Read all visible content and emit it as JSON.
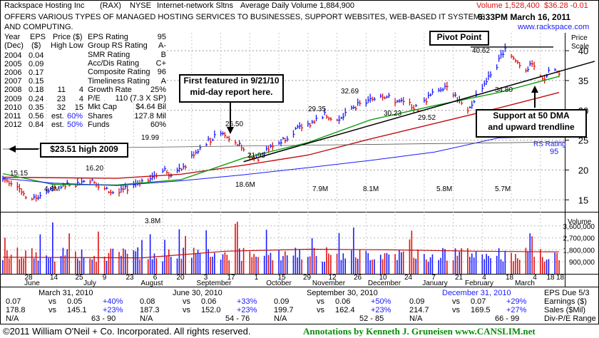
{
  "header": {
    "company": "Rackspace Hosting Inc",
    "symbol": "(RAX)",
    "exchange": "NYSE",
    "industry": "Internet-network Sltns",
    "avg_volume": "Average Daily Volume 1,884,900",
    "volume": "Volume 1,528,400",
    "price": "$36.28 -0.01",
    "timestamp": "6:33PM March 16, 2011",
    "website": "www.rackspace.com",
    "description_line1": "OFFERS VARIOUS TYPES OF MANAGED HOSTING SERVICES TO BUSINESSES, SUPPORT WEBSITES, WEB-BASED IT SYSTEMS",
    "description_line2": "AND COMPUTING."
  },
  "annual_table": {
    "headers": [
      "Year",
      "EPS",
      "Price ($)",
      "(Dec)",
      "($)",
      "High Low"
    ],
    "rows": [
      {
        "year": "2004",
        "eps": "0.04",
        "high": "",
        "low": "",
        "pct": ""
      },
      {
        "year": "2005",
        "eps": "0.09",
        "high": "",
        "low": "",
        "pct": ""
      },
      {
        "year": "2006",
        "eps": "0.17",
        "high": "",
        "low": "",
        "pct": ""
      },
      {
        "year": "2007",
        "eps": "0.15",
        "high": "",
        "low": "",
        "pct": ""
      },
      {
        "year": "2008",
        "eps": "0.18",
        "high": "11",
        "low": "4",
        "pct": ""
      },
      {
        "year": "2009",
        "eps": "0.24",
        "high": "23",
        "low": "4",
        "pct": ""
      },
      {
        "year": "2010",
        "eps": "0.35",
        "high": "32",
        "low": "15",
        "pct": ""
      },
      {
        "year": "2011",
        "eps": "0.56",
        "high": "est.",
        "low": "",
        "pct": "60%"
      },
      {
        "year": "2012",
        "eps": "0.84",
        "high": "est.",
        "low": "",
        "pct": "50%"
      }
    ]
  },
  "ratings": [
    {
      "label": "EPS Rating",
      "value": "95"
    },
    {
      "label": "Group RS Rating",
      "value": "A-"
    },
    {
      "label": "SMR Rating",
      "value": "B"
    },
    {
      "label": "Acc/Dis Rating",
      "value": "C+"
    },
    {
      "label": "Composite Rating",
      "value": "96"
    },
    {
      "label": "Timeliness Rating",
      "value": "A"
    },
    {
      "label": "Growth Rate",
      "value": "25%"
    },
    {
      "label": "P/E",
      "value": "110 (7.3 X SP)"
    },
    {
      "label": "Mkt Cap",
      "value": "$4.64 Bil"
    },
    {
      "label": "Shares",
      "value": "127.8 Mil"
    },
    {
      "label": "Funds",
      "value": "60%"
    }
  ],
  "annotations": {
    "pivot": "Pivot Point",
    "featured_line1": "First featured in 9/21/10",
    "featured_line2": "mid-day report here.",
    "high2009": "$23.51 high 2009",
    "support_line1": "Support at 50 DMA",
    "support_line2": "and upward trendline",
    "rs_rating_label": "RS Rating",
    "rs_rating_value": "95"
  },
  "price_labels": [
    "15.15",
    "16.20",
    "19.99",
    "26.50",
    "21.95",
    "29.35",
    "32.69",
    "30.23",
    "29.52",
    "40.62",
    "34.80"
  ],
  "volume_labels": [
    "4.6M",
    "3.8M",
    "18.6M",
    "7.9M",
    "8.1M",
    "5.8M",
    "5.7M"
  ],
  "volume_axis": {
    "title": "Volume",
    "ticks": [
      "3,600,000",
      "2,700,000",
      "1,800,000",
      "900,000"
    ]
  },
  "price_axis": {
    "title_line1": "Price",
    "title_line2": "Scale",
    "ticks": [
      "40",
      "35",
      "30",
      "25",
      "20",
      "15"
    ]
  },
  "date_axis": {
    "days": [
      "28",
      "14",
      "25",
      "9",
      "23",
      "6",
      "20",
      "3",
      "17",
      "1",
      "15",
      "29",
      "12",
      "26",
      "10",
      "24",
      "7",
      "21",
      "4",
      "18",
      "4",
      "18"
    ],
    "months": [
      "June",
      "July",
      "August",
      "September",
      "October",
      "November",
      "December",
      "January",
      "February",
      "March"
    ]
  },
  "quarters": [
    {
      "date": "March 31, 2010",
      "eps": "0.07",
      "eps_prior": "0.05",
      "eps_pct": "+40%",
      "sales": "178.8",
      "sales_prior": "145.1",
      "sales_pct": "+23%",
      "pe": "N/A",
      "pe_range": "63 - 90"
    },
    {
      "date": "June 30, 2010",
      "eps": "0.08",
      "eps_prior": "0.06",
      "eps_pct": "+33%",
      "sales": "187.3",
      "sales_prior": "152.0",
      "sales_pct": "+23%",
      "pe": "N/A",
      "pe_range": "54 - 76"
    },
    {
      "date": "September 30, 2010",
      "eps": "0.09",
      "eps_prior": "0.06",
      "eps_pct": "+50%",
      "sales": "199.7",
      "sales_prior": "162.4",
      "sales_pct": "+23%",
      "pe": "N/A",
      "pe_range": "52 - 85"
    },
    {
      "date": "December 31, 2010",
      "eps": "0.09",
      "eps_prior": "0.07",
      "eps_pct": "+29%",
      "sales": "214.7",
      "sales_prior": "169.5",
      "sales_pct": "+27%",
      "pe": "N/A",
      "pe_range": "66 - 99"
    }
  ],
  "quarter_vs": "vs",
  "right_labels": {
    "eps_due": "EPS Due 5/3",
    "earnings": "Earnings ($)",
    "sales": "Sales ($Mil)",
    "divpe": "Div-P/E Range"
  },
  "footer": {
    "copyright": "©2011 William O'Neil + Co. Incorporated. All rights reserved.",
    "annotations_credit": "Annotations by Kenneth J. Gruneisen  www.CANSLIM.net"
  },
  "colors": {
    "up_bar": "#1a1aff",
    "down_bar": "#e01010",
    "ma50": "#10a010",
    "ma200": "#c01010",
    "trend": "#000000",
    "rs": "#1a1aff"
  },
  "chart_data": {
    "type": "candlestick",
    "title": "Rackspace Hosting Inc (RAX)",
    "ylabel": "Price Scale",
    "ylim": [
      13,
      43
    ],
    "volume_ylim": [
      0,
      4500000
    ],
    "x_start": "2010-06-21",
    "x_end": "2011-03-16",
    "price_path": [
      [
        "2010-06-21",
        18.5
      ],
      [
        "2010-06-28",
        17.6
      ],
      [
        "2010-07-01",
        15.6
      ],
      [
        "2010-07-06",
        15.15
      ],
      [
        "2010-07-12",
        16.4
      ],
      [
        "2010-07-19",
        17.2
      ],
      [
        "2010-07-26",
        17.7
      ],
      [
        "2010-08-02",
        18.4
      ],
      [
        "2010-08-06",
        17.2
      ],
      [
        "2010-08-12",
        16.3
      ],
      [
        "2010-08-16",
        16.2
      ],
      [
        "2010-08-23",
        17.6
      ],
      [
        "2010-08-30",
        18.6
      ],
      [
        "2010-09-07",
        19.99
      ],
      [
        "2010-09-10",
        19.0
      ],
      [
        "2010-09-17",
        20.6
      ],
      [
        "2010-09-21",
        22.8
      ],
      [
        "2010-09-27",
        24.6
      ],
      [
        "2010-10-01",
        25.5
      ],
      [
        "2010-10-04",
        26.5
      ],
      [
        "2010-10-08",
        25.6
      ],
      [
        "2010-10-13",
        24.2
      ],
      [
        "2010-10-19",
        22.2
      ],
      [
        "2010-10-22",
        21.95
      ],
      [
        "2010-10-26",
        23.3
      ],
      [
        "2010-11-02",
        24.8
      ],
      [
        "2010-11-09",
        26.7
      ],
      [
        "2010-11-16",
        27.8
      ],
      [
        "2010-11-23",
        29.35
      ],
      [
        "2010-11-30",
        28.2
      ],
      [
        "2010-12-07",
        30.6
      ],
      [
        "2010-12-14",
        31.5
      ],
      [
        "2010-12-20",
        32.69
      ],
      [
        "2010-12-27",
        31.6
      ],
      [
        "2011-01-03",
        31.0
      ],
      [
        "2011-01-07",
        30.23
      ],
      [
        "2011-01-12",
        32.2
      ],
      [
        "2011-01-17",
        33.5
      ],
      [
        "2011-01-21",
        34.3
      ],
      [
        "2011-01-26",
        32.0
      ],
      [
        "2011-01-31",
        29.52
      ],
      [
        "2011-02-04",
        32.5
      ],
      [
        "2011-02-09",
        35.0
      ],
      [
        "2011-02-14",
        37.5
      ],
      [
        "2011-02-18",
        40.62
      ],
      [
        "2011-02-23",
        38.3
      ],
      [
        "2011-02-28",
        36.9
      ],
      [
        "2011-03-03",
        37.6
      ],
      [
        "2011-03-07",
        36.0
      ],
      [
        "2011-03-09",
        34.8
      ],
      [
        "2011-03-11",
        36.6
      ],
      [
        "2011-03-16",
        36.28
      ]
    ],
    "volume_seed": 7,
    "ma50_path": [
      [
        "2010-06-21",
        19.4
      ],
      [
        "2010-07-15",
        17.6
      ],
      [
        "2010-08-15",
        17.5
      ],
      [
        "2010-09-15",
        18.4
      ],
      [
        "2010-10-15",
        22.0
      ],
      [
        "2010-11-15",
        24.6
      ],
      [
        "2010-12-15",
        28.4
      ],
      [
        "2011-01-15",
        30.8
      ],
      [
        "2011-02-15",
        33.0
      ],
      [
        "2011-03-16",
        35.7
      ]
    ],
    "ma200_path": [
      [
        "2010-06-21",
        18.8
      ],
      [
        "2010-08-15",
        18.6
      ],
      [
        "2010-09-15",
        19.3
      ],
      [
        "2010-10-15",
        20.8
      ],
      [
        "2010-11-15",
        22.5
      ],
      [
        "2010-12-15",
        25.2
      ],
      [
        "2011-01-15",
        27.8
      ],
      [
        "2011-02-15",
        30.4
      ],
      [
        "2011-03-16",
        33.0
      ]
    ],
    "trendline": [
      [
        "2010-10-15",
        21.4
      ],
      [
        "2011-03-20",
        35.6
      ]
    ],
    "pivot_level": 40.62,
    "rs_line": [
      [
        "2010-06-21",
        18.6
      ],
      [
        "2010-07-15",
        17.8
      ],
      [
        "2010-08-15",
        17.4
      ],
      [
        "2010-09-15",
        18.2
      ],
      [
        "2010-10-15",
        19.2
      ],
      [
        "2010-11-15",
        20.4
      ],
      [
        "2010-12-15",
        21.6
      ],
      [
        "2011-01-15",
        23.0
      ],
      [
        "2011-02-15",
        25.4
      ],
      [
        "2011-03-16",
        25.6
      ]
    ]
  }
}
